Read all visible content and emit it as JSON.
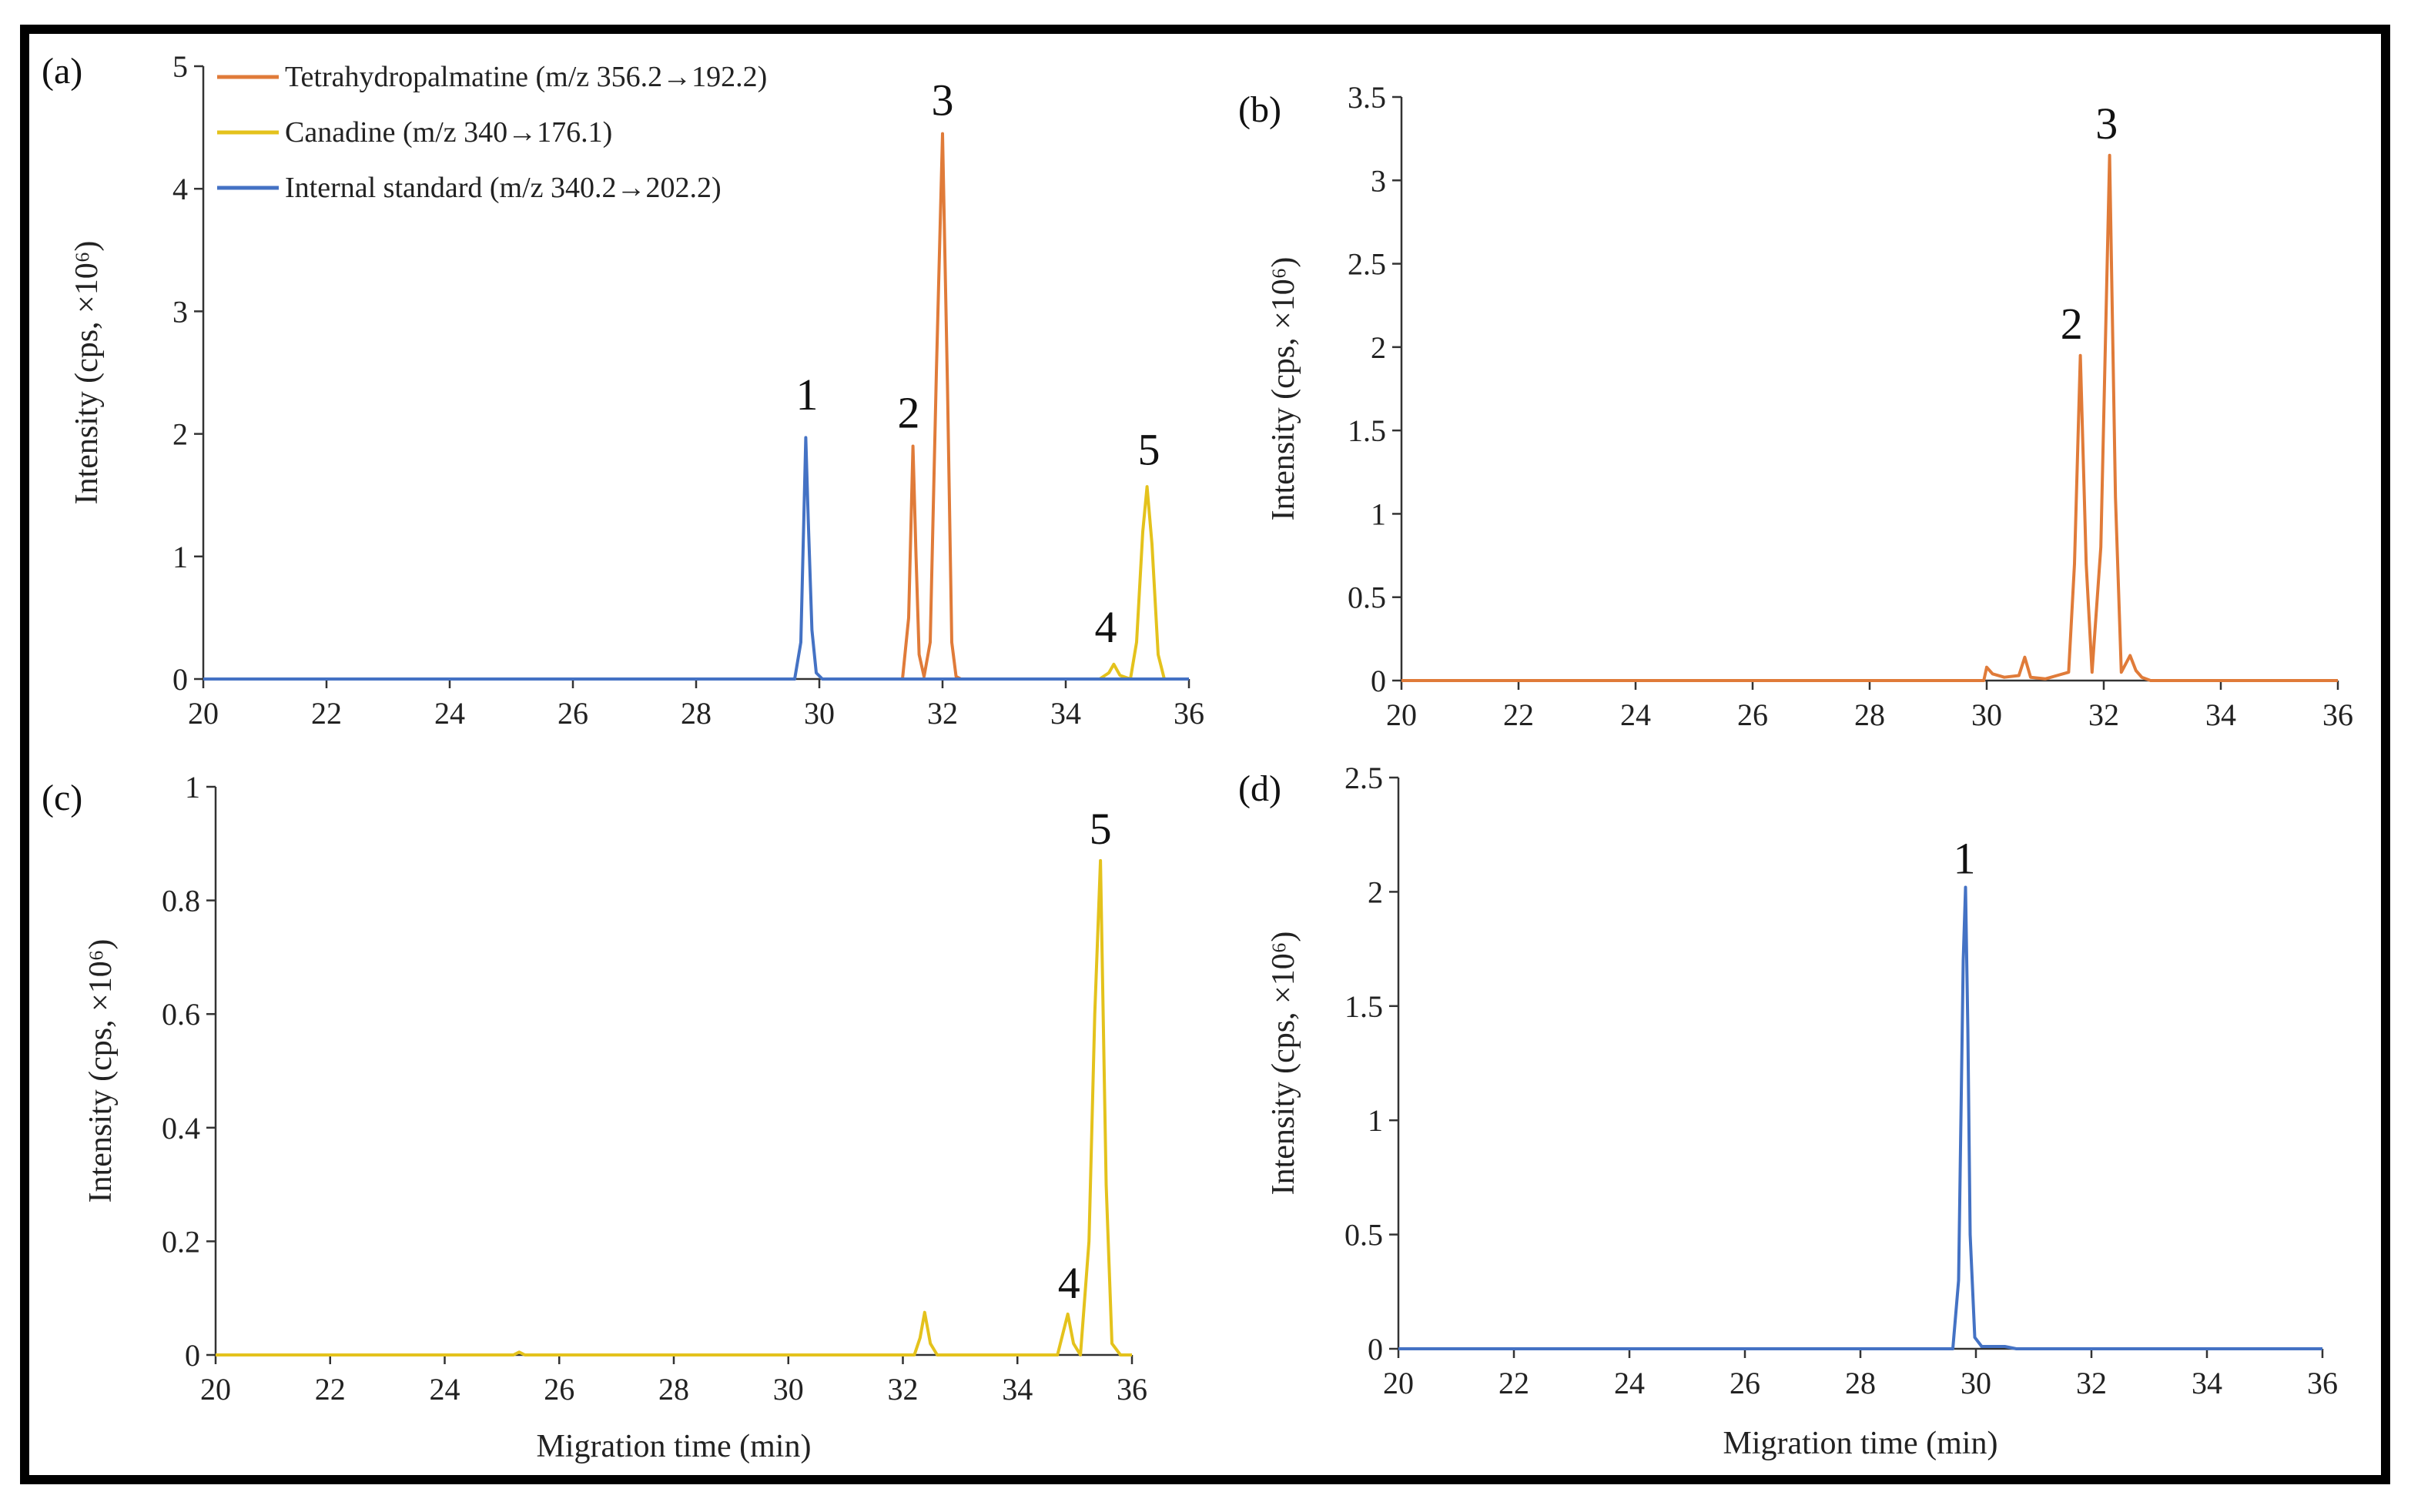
{
  "colors": {
    "tetrahydropalmatine": "#E07B39",
    "canadine": "#E4C21C",
    "internal_standard": "#4472C4"
  },
  "legend": [
    {
      "key": "tetrahydropalmatine",
      "label": "Tetrahydropalmatine (m/z 356.2→192.2)"
    },
    {
      "key": "canadine",
      "label": "Canadine (m/z 340→176.1)"
    },
    {
      "key": "internal_standard",
      "label": "Internal standard (m/z 340.2→202.2)"
    }
  ],
  "chart_data": [
    {
      "type": "line",
      "panel_label": "(a)",
      "xlabel": "",
      "ylabel": "Intensity (cps, ×10⁶)",
      "xlim": [
        20,
        36
      ],
      "ylim": [
        0,
        5
      ],
      "xticks": [
        20,
        22,
        24,
        26,
        28,
        30,
        32,
        34,
        36
      ],
      "yticks": [
        0,
        1,
        2,
        3,
        4,
        5
      ],
      "legend_position": "top-left",
      "series": [
        {
          "name": "Tetrahydropalmatine (m/z 356.2→192.2)",
          "key": "tetrahydropalmatine",
          "x": [
            31.35,
            31.45,
            31.52,
            31.57,
            31.62,
            31.7,
            31.8,
            31.9,
            32.0,
            32.08,
            32.15,
            32.22,
            32.3
          ],
          "y": [
            0,
            0.5,
            1.9,
            1.0,
            0.2,
            0.02,
            0.3,
            2.5,
            4.45,
            2.4,
            0.3,
            0.02,
            0
          ]
        },
        {
          "name": "Canadine (m/z 340→176.1)",
          "key": "canadine",
          "x": [
            34.55,
            34.7,
            34.78,
            34.88,
            35.05,
            35.15,
            35.25,
            35.32,
            35.4,
            35.5,
            35.6
          ],
          "y": [
            0,
            0.05,
            0.12,
            0.03,
            0,
            0.3,
            1.2,
            1.57,
            1.1,
            0.2,
            0
          ]
        },
        {
          "name": "Internal standard (m/z 340.2→202.2)",
          "key": "internal_standard",
          "x": [
            20,
            29.6,
            29.7,
            29.78,
            29.82,
            29.88,
            29.95,
            30.05,
            31.5,
            32.5,
            36
          ],
          "y": [
            0,
            0,
            0.3,
            1.97,
            1.3,
            0.4,
            0.05,
            0,
            0,
            0,
            0
          ]
        }
      ],
      "annotations": [
        {
          "text": "1",
          "x": 29.8,
          "y": 2.2
        },
        {
          "text": "2",
          "x": 31.45,
          "y": 2.05
        },
        {
          "text": "3",
          "x": 32.0,
          "y": 4.6
        },
        {
          "text": "4",
          "x": 34.65,
          "y": 0.3
        },
        {
          "text": "5",
          "x": 35.35,
          "y": 1.75
        }
      ]
    },
    {
      "type": "line",
      "panel_label": "(b)",
      "xlabel": "",
      "ylabel": "Intensity (cps, ×10⁶)",
      "xlim": [
        20,
        36
      ],
      "ylim": [
        0,
        3.5
      ],
      "xticks": [
        20,
        22,
        24,
        26,
        28,
        30,
        32,
        34,
        36
      ],
      "yticks": [
        0,
        0.5,
        1,
        1.5,
        2,
        2.5,
        3,
        3.5
      ],
      "series": [
        {
          "name": "Tetrahydropalmatine (m/z 356.2→192.2)",
          "key": "tetrahydropalmatine",
          "x": [
            20,
            29.95,
            30.0,
            30.1,
            30.3,
            30.55,
            30.65,
            30.75,
            31.0,
            31.2,
            31.4,
            31.5,
            31.6,
            31.7,
            31.8,
            31.95,
            32.1,
            32.2,
            32.3,
            32.45,
            32.55,
            32.65,
            32.8,
            36
          ],
          "y": [
            0,
            0,
            0.08,
            0.04,
            0.02,
            0.03,
            0.14,
            0.02,
            0.01,
            0.03,
            0.05,
            0.7,
            1.95,
            0.7,
            0.05,
            0.8,
            3.15,
            1.1,
            0.05,
            0.15,
            0.06,
            0.02,
            0,
            0
          ]
        }
      ],
      "annotations": [
        {
          "text": "2",
          "x": 31.45,
          "y": 2.05
        },
        {
          "text": "3",
          "x": 32.05,
          "y": 3.25
        }
      ]
    },
    {
      "type": "line",
      "panel_label": "(c)",
      "xlabel": "Migration time (min)",
      "ylabel": "Intensity (cps, ×10⁶)",
      "xlim": [
        20,
        36
      ],
      "ylim": [
        0,
        1
      ],
      "xticks": [
        20,
        22,
        24,
        26,
        28,
        30,
        32,
        34,
        36
      ],
      "yticks": [
        0,
        0.2,
        0.4,
        0.6,
        0.8,
        1
      ],
      "series": [
        {
          "name": "Canadine (m/z 340→176.1)",
          "key": "canadine",
          "x": [
            20,
            25.2,
            25.3,
            25.4,
            32.2,
            32.3,
            32.38,
            32.48,
            32.6,
            34.7,
            34.8,
            34.88,
            34.98,
            35.1,
            35.25,
            35.35,
            35.45,
            35.55,
            35.65,
            35.8,
            36
          ],
          "y": [
            0,
            0,
            0.005,
            0,
            0,
            0.03,
            0.075,
            0.02,
            0,
            0,
            0.04,
            0.072,
            0.02,
            0,
            0.2,
            0.6,
            0.87,
            0.3,
            0.02,
            0,
            0
          ]
        }
      ],
      "annotations": [
        {
          "text": "4",
          "x": 34.9,
          "y": 0.1
        },
        {
          "text": "5",
          "x": 35.45,
          "y": 0.9
        }
      ]
    },
    {
      "type": "line",
      "panel_label": "(d)",
      "xlabel": "Migration time (min)",
      "ylabel": "Intensity (cps, ×10⁶)",
      "xlim": [
        20,
        36
      ],
      "ylim": [
        0,
        2.5
      ],
      "xticks": [
        20,
        22,
        24,
        26,
        28,
        30,
        32,
        34,
        36
      ],
      "yticks": [
        0,
        0.5,
        1,
        1.5,
        2,
        2.5
      ],
      "series": [
        {
          "name": "Internal standard (m/z 340.2→202.2)",
          "key": "internal_standard",
          "x": [
            20,
            29.6,
            29.7,
            29.78,
            29.82,
            29.86,
            29.9,
            29.98,
            30.1,
            30.5,
            30.7,
            36
          ],
          "y": [
            0,
            0,
            0.3,
            1.7,
            2.02,
            1.4,
            0.5,
            0.05,
            0.01,
            0.01,
            0,
            0
          ]
        }
      ],
      "annotations": [
        {
          "text": "1",
          "x": 29.8,
          "y": 2.08
        }
      ]
    }
  ]
}
